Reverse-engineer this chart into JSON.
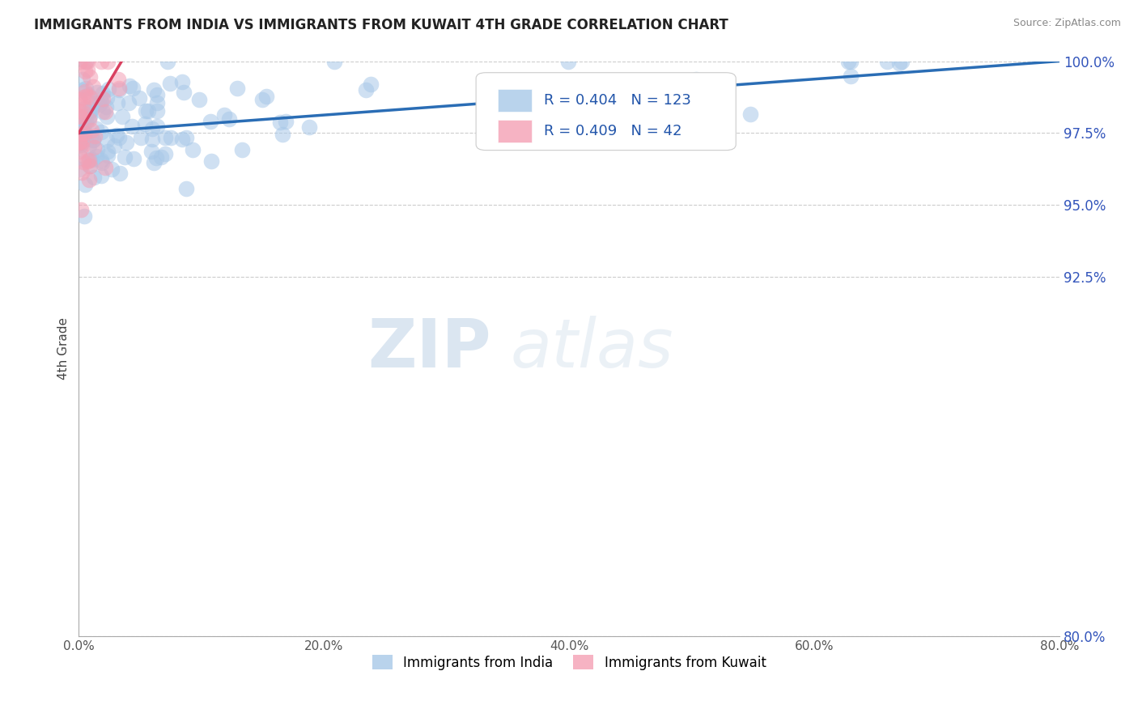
{
  "title": "IMMIGRANTS FROM INDIA VS IMMIGRANTS FROM KUWAIT 4TH GRADE CORRELATION CHART",
  "source_text": "Source: ZipAtlas.com",
  "ylabel": "4th Grade",
  "xlim": [
    0.0,
    80.0
  ],
  "ylim": [
    80.0,
    100.0
  ],
  "xtick_labels": [
    "0.0%",
    "20.0%",
    "40.0%",
    "60.0%",
    "80.0%"
  ],
  "xtick_values": [
    0.0,
    20.0,
    40.0,
    60.0,
    80.0
  ],
  "ytick_labels": [
    "100.0%",
    "97.5%",
    "95.0%",
    "92.5%",
    "80.0%"
  ],
  "ytick_values": [
    100.0,
    97.5,
    95.0,
    92.5,
    80.0
  ],
  "legend_R_india": "0.404",
  "legend_N_india": "123",
  "legend_R_kuwait": "0.409",
  "legend_N_kuwait": "42",
  "india_color": "#a8c8e8",
  "kuwait_color": "#f4a0b5",
  "india_line_color": "#2a6db5",
  "kuwait_line_color": "#d94060",
  "watermark_zip": "ZIP",
  "watermark_atlas": "atlas",
  "india_seed": 42,
  "kuwait_seed": 99
}
